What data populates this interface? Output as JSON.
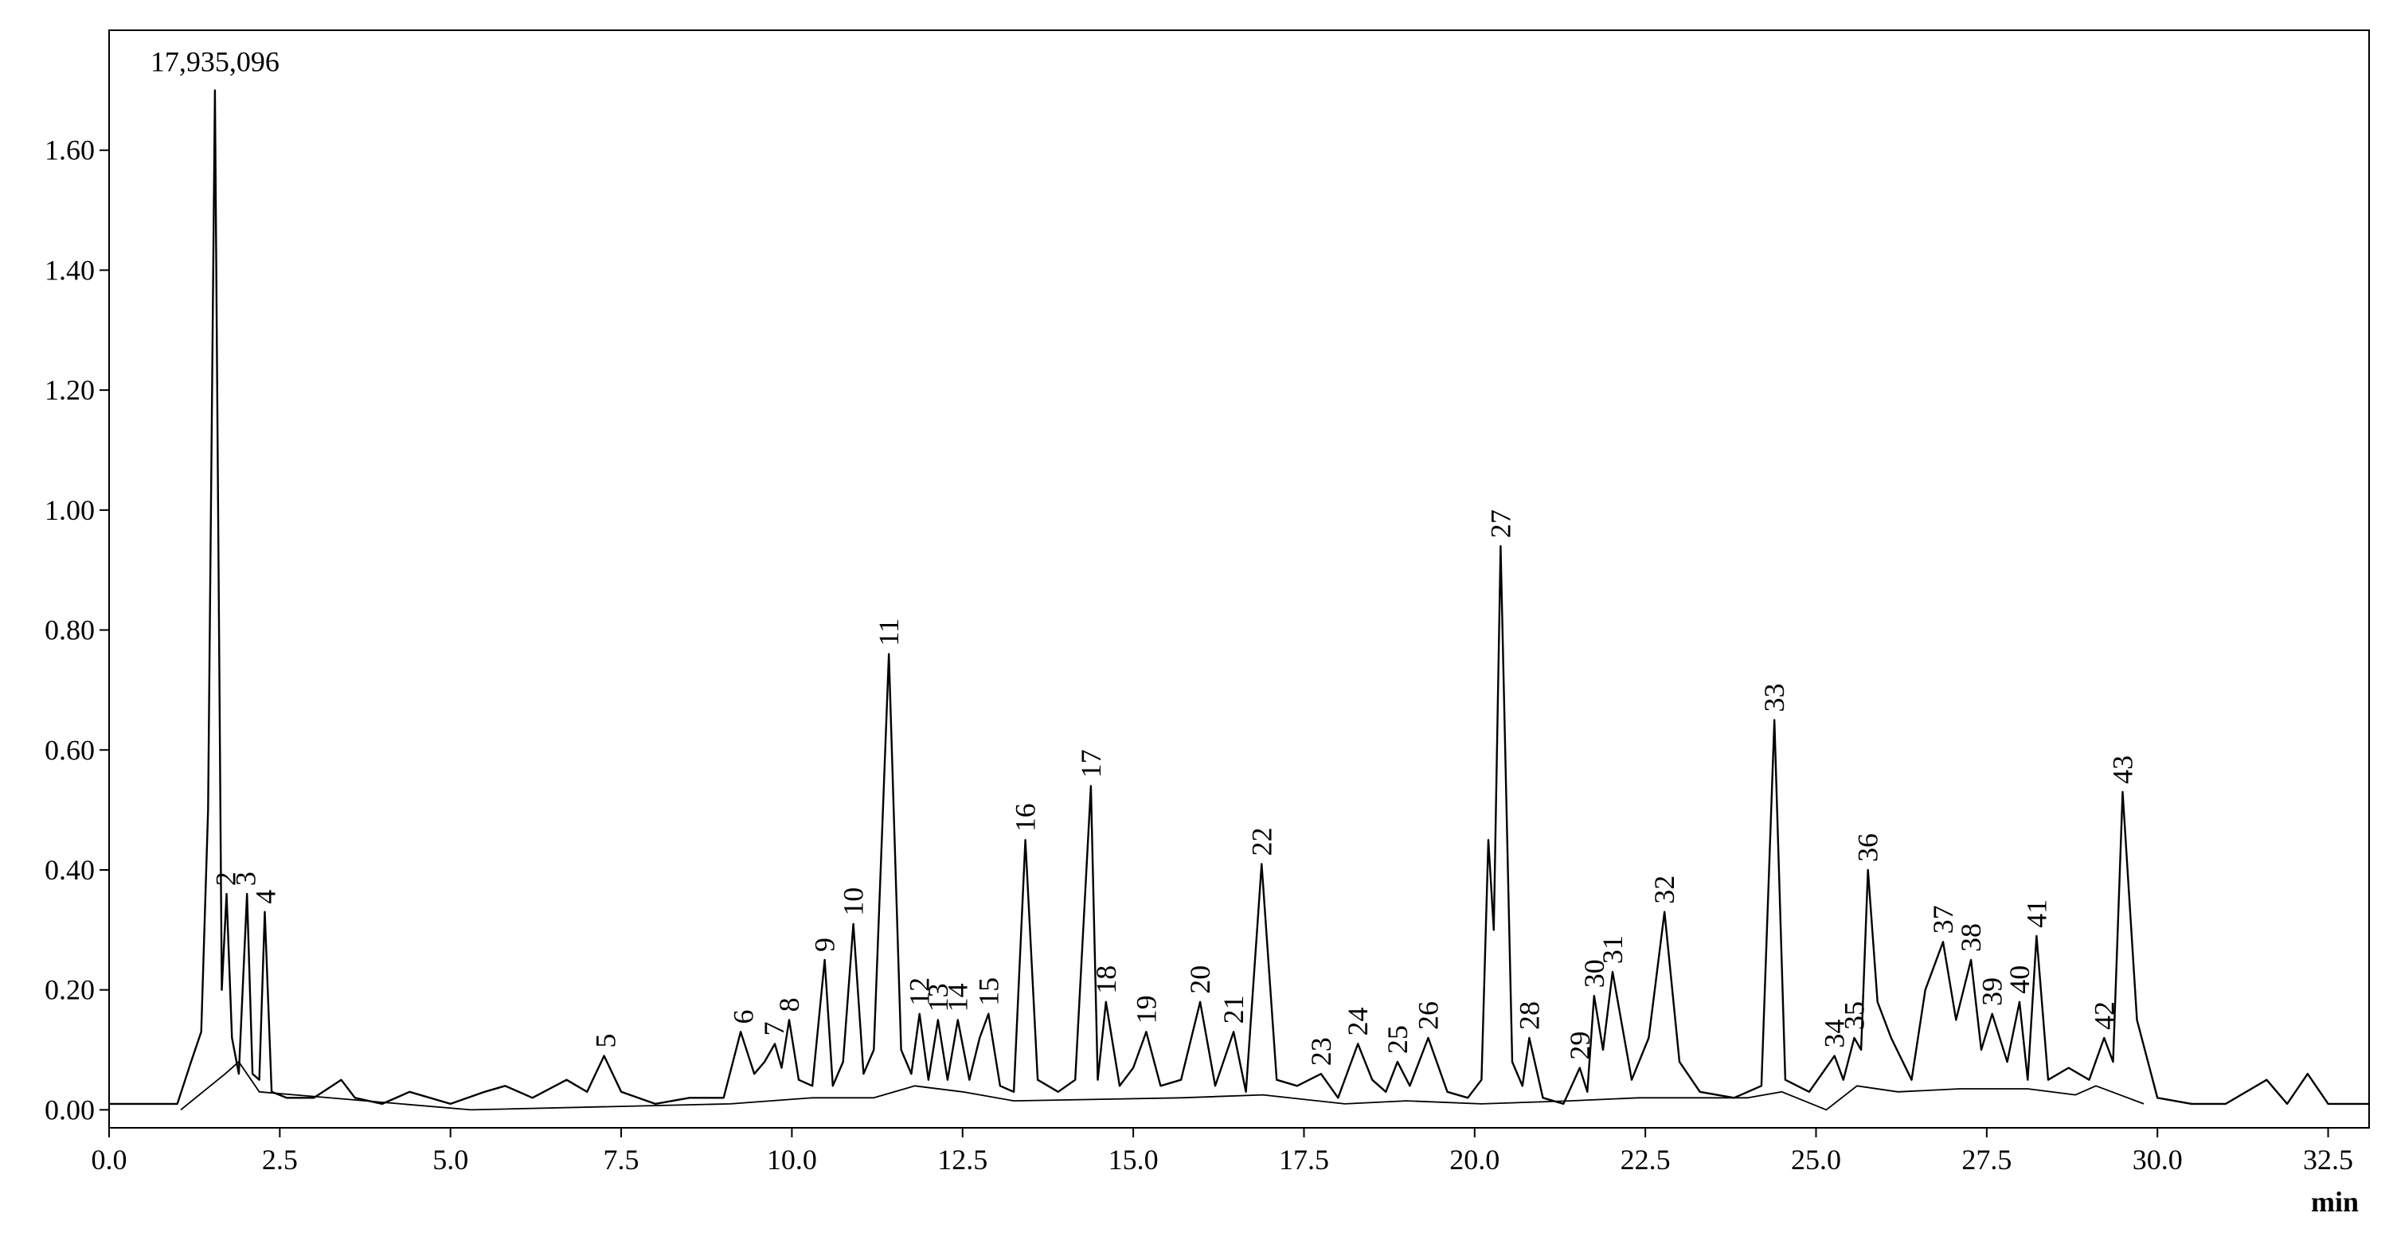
{
  "chart_data": {
    "type": "line",
    "x_label": "min",
    "xlim": [
      0,
      33.1
    ],
    "ylim": [
      -0.03,
      1.8
    ],
    "xticks": [
      {
        "value": 0,
        "label": "0.0"
      },
      2.5,
      {
        "value": 5,
        "label": "5.0"
      },
      7.5,
      {
        "value": 10,
        "label": "10.0"
      },
      12.5,
      {
        "value": 15,
        "label": "15.0"
      },
      17.5,
      {
        "value": 20,
        "label": "20.0"
      },
      22.5,
      {
        "value": 25,
        "label": "25.0"
      },
      27.5,
      {
        "value": 30,
        "label": "30.0"
      },
      32.5
    ],
    "yticks": [
      {
        "value": 0,
        "label": "0.00"
      },
      {
        "value": 0.2,
        "label": "0.20"
      },
      {
        "value": 0.4,
        "label": "0.40"
      },
      {
        "value": 0.6,
        "label": "0.60"
      },
      {
        "value": 0.8,
        "label": "0.80"
      },
      {
        "value": 1,
        "label": "1.00"
      },
      {
        "value": 1.2,
        "label": "1.20"
      },
      {
        "value": 1.4,
        "label": "1.40"
      },
      {
        "value": 1.6,
        "label": "1.60"
      }
    ],
    "series": [
      {
        "color": "#000000",
        "x": [
          0,
          1.0,
          1.2,
          1.35,
          1.45,
          1.55,
          1.65,
          1.72,
          1.8,
          1.9,
          2.02,
          2.1,
          2.2,
          2.28,
          2.38,
          2.6,
          3.0,
          3.4,
          3.6,
          4.0,
          4.4,
          5.0,
          5.5,
          5.8,
          6.2,
          6.7,
          7.0,
          7.25,
          7.5,
          8.0,
          8.5,
          9.0,
          9.25,
          9.45,
          9.6,
          9.75,
          9.85,
          9.96,
          10.1,
          10.3,
          10.48,
          10.6,
          10.75,
          10.9,
          11.05,
          11.2,
          11.42,
          11.6,
          11.75,
          11.87,
          12.0,
          12.14,
          12.28,
          12.43,
          12.6,
          12.75,
          12.88,
          13.05,
          13.25,
          13.42,
          13.6,
          13.9,
          14.15,
          14.38,
          14.48,
          14.6,
          14.8,
          15.0,
          15.19,
          15.4,
          15.7,
          15.98,
          16.2,
          16.47,
          16.65,
          16.88,
          17.1,
          17.4,
          17.75,
          18.0,
          18.29,
          18.5,
          18.7,
          18.87,
          19.05,
          19.32,
          19.6,
          19.9,
          20.1,
          20.2,
          20.28,
          20.38,
          20.55,
          20.7,
          20.8,
          21.0,
          21.3,
          21.54,
          21.65,
          21.75,
          21.88,
          22.02,
          22.3,
          22.55,
          22.78,
          23.0,
          23.3,
          23.8,
          24.2,
          24.39,
          24.55,
          24.9,
          25.27,
          25.4,
          25.56,
          25.66,
          25.76,
          25.9,
          26.1,
          26.4,
          26.6,
          26.86,
          27.05,
          27.27,
          27.42,
          27.58,
          27.8,
          27.98,
          28.1,
          28.23,
          28.4,
          28.7,
          29.0,
          29.22,
          29.35,
          29.49,
          29.7,
          30.0,
          30.5,
          31.0,
          31.6,
          31.9,
          32.2,
          32.5,
          33.1
        ],
        "values": [
          0.01,
          0.01,
          0.08,
          0.13,
          0.5,
          1.7,
          0.2,
          0.36,
          0.12,
          0.06,
          0.36,
          0.06,
          0.05,
          0.33,
          0.03,
          0.02,
          0.02,
          0.05,
          0.02,
          0.01,
          0.03,
          0.01,
          0.03,
          0.04,
          0.02,
          0.05,
          0.03,
          0.09,
          0.03,
          0.01,
          0.02,
          0.02,
          0.13,
          0.06,
          0.08,
          0.11,
          0.07,
          0.15,
          0.05,
          0.04,
          0.25,
          0.04,
          0.08,
          0.31,
          0.06,
          0.1,
          0.76,
          0.1,
          0.06,
          0.16,
          0.05,
          0.15,
          0.05,
          0.15,
          0.05,
          0.12,
          0.16,
          0.04,
          0.03,
          0.45,
          0.05,
          0.03,
          0.05,
          0.54,
          0.05,
          0.18,
          0.04,
          0.07,
          0.13,
          0.04,
          0.05,
          0.18,
          0.04,
          0.13,
          0.03,
          0.41,
          0.05,
          0.04,
          0.06,
          0.02,
          0.11,
          0.05,
          0.03,
          0.08,
          0.04,
          0.12,
          0.03,
          0.02,
          0.05,
          0.45,
          0.3,
          0.94,
          0.08,
          0.04,
          0.12,
          0.02,
          0.01,
          0.07,
          0.03,
          0.19,
          0.1,
          0.23,
          0.05,
          0.12,
          0.33,
          0.08,
          0.03,
          0.02,
          0.04,
          0.65,
          0.05,
          0.03,
          0.09,
          0.05,
          0.12,
          0.1,
          0.4,
          0.18,
          0.12,
          0.05,
          0.2,
          0.28,
          0.15,
          0.25,
          0.1,
          0.16,
          0.08,
          0.18,
          0.05,
          0.29,
          0.05,
          0.07,
          0.05,
          0.12,
          0.08,
          0.53,
          0.15,
          0.02,
          0.01,
          0.01,
          0.05,
          0.01,
          0.06,
          0.01,
          0.01
        ]
      },
      {
        "color": "#000000",
        "x": [
          1.05,
          1.7,
          1.9,
          2.2,
          5.3,
          9.1,
          10.3,
          11.2,
          11.8,
          12.5,
          13.25,
          15.7,
          16.9,
          18.1,
          19.0,
          20.1,
          21.4,
          22.4,
          24.0,
          24.5,
          25.15,
          25.6,
          26.2,
          27.1,
          28.1,
          28.8,
          29.1,
          29.8
        ],
        "values": [
          0.0,
          0.06,
          0.08,
          0.03,
          0.0,
          0.01,
          0.02,
          0.02,
          0.04,
          0.03,
          0.015,
          0.02,
          0.025,
          0.01,
          0.015,
          0.01,
          0.015,
          0.02,
          0.02,
          0.03,
          0.0,
          0.04,
          0.03,
          0.035,
          0.035,
          0.025,
          0.04,
          0.01
        ]
      }
    ],
    "top_annotation": {
      "text": "17,935,096",
      "x": 1.55,
      "y": 1.7
    },
    "peaks": [
      {
        "label": "2",
        "x": 1.71,
        "y": 0.36
      },
      {
        "label": "3",
        "x": 2.0,
        "y": 0.36
      },
      {
        "label": "4",
        "x": 2.29,
        "y": 0.33
      },
      {
        "label": "5",
        "x": 7.27,
        "y": 0.09
      },
      {
        "label": "6",
        "x": 9.29,
        "y": 0.13
      },
      {
        "label": "7",
        "x": 9.74,
        "y": 0.11
      },
      {
        "label": "8",
        "x": 9.96,
        "y": 0.15
      },
      {
        "label": "9",
        "x": 10.48,
        "y": 0.25
      },
      {
        "label": "10",
        "x": 10.9,
        "y": 0.31
      },
      {
        "label": "11",
        "x": 11.42,
        "y": 0.76
      },
      {
        "label": "12",
        "x": 11.87,
        "y": 0.16
      },
      {
        "label": "13",
        "x": 12.14,
        "y": 0.15
      },
      {
        "label": "14",
        "x": 12.43,
        "y": 0.15
      },
      {
        "label": "15",
        "x": 12.88,
        "y": 0.16
      },
      {
        "label": "16",
        "x": 13.42,
        "y": 0.45
      },
      {
        "label": "17",
        "x": 14.38,
        "y": 0.54
      },
      {
        "label": "18",
        "x": 14.6,
        "y": 0.18
      },
      {
        "label": "19",
        "x": 15.19,
        "y": 0.13
      },
      {
        "label": "20",
        "x": 15.98,
        "y": 0.18
      },
      {
        "label": "21",
        "x": 16.47,
        "y": 0.13
      },
      {
        "label": "22",
        "x": 16.88,
        "y": 0.41
      },
      {
        "label": "23",
        "x": 17.75,
        "y": 0.06
      },
      {
        "label": "24",
        "x": 18.29,
        "y": 0.11
      },
      {
        "label": "25",
        "x": 18.87,
        "y": 0.08
      },
      {
        "label": "26",
        "x": 19.32,
        "y": 0.12
      },
      {
        "label": "27",
        "x": 20.38,
        "y": 0.94
      },
      {
        "label": "28",
        "x": 20.8,
        "y": 0.12
      },
      {
        "label": "29",
        "x": 21.54,
        "y": 0.07
      },
      {
        "label": "30",
        "x": 21.75,
        "y": 0.19
      },
      {
        "label": "31",
        "x": 22.02,
        "y": 0.23
      },
      {
        "label": "32",
        "x": 22.78,
        "y": 0.33
      },
      {
        "label": "33",
        "x": 24.39,
        "y": 0.65
      },
      {
        "label": "34",
        "x": 25.27,
        "y": 0.09
      },
      {
        "label": "35",
        "x": 25.56,
        "y": 0.12
      },
      {
        "label": "36",
        "x": 25.76,
        "y": 0.4
      },
      {
        "label": "37",
        "x": 26.86,
        "y": 0.28
      },
      {
        "label": "38",
        "x": 27.27,
        "y": 0.25
      },
      {
        "label": "39",
        "x": 27.58,
        "y": 0.16
      },
      {
        "label": "40",
        "x": 27.98,
        "y": 0.18
      },
      {
        "label": "41",
        "x": 28.23,
        "y": 0.29
      },
      {
        "label": "42",
        "x": 29.22,
        "y": 0.12
      },
      {
        "label": "43",
        "x": 29.49,
        "y": 0.53
      }
    ]
  }
}
